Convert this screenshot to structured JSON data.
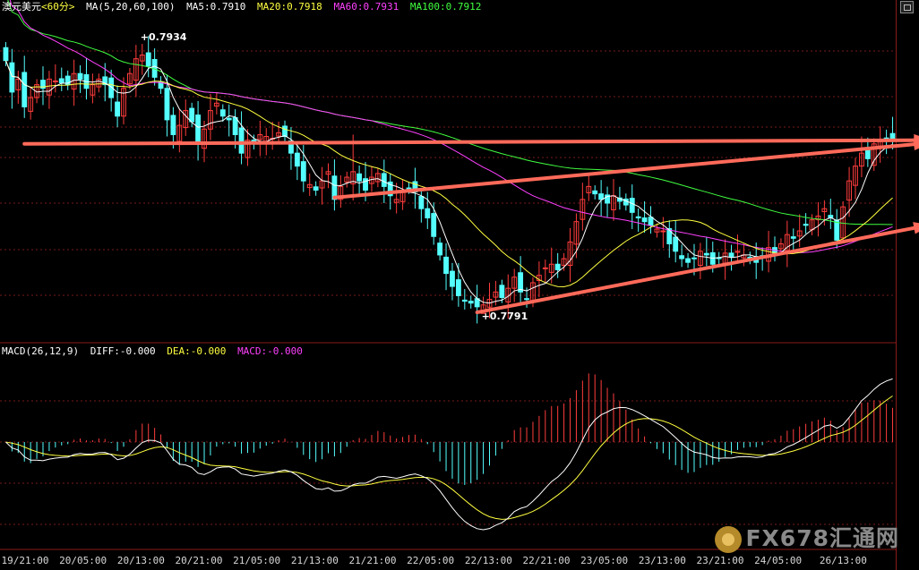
{
  "header": {
    "symbol": "澳元美元",
    "period": "<60分>",
    "ma_label": "MA(5,20,60,100)",
    "ma5": "MA5:0.7910",
    "ma20": "MA20:0.7918",
    "ma60": "MA60:0.7931",
    "ma100": "MA100:0.7912"
  },
  "macd_header": {
    "label": "MACD(26,12,9)",
    "diff": "DIFF:-0.000",
    "dea": "DEA:-0.000",
    "macd": "MACD:-0.000"
  },
  "colors": {
    "background": "#000000",
    "up_candle": "#ff3c3c",
    "down_candle": "#54ffff",
    "ma5": "#ffffff",
    "ma20": "#ffff40",
    "ma60": "#ff40ff",
    "ma100": "#40ff40",
    "trend_arrow": "#ff6a5a",
    "grid": "#7a1a1a",
    "axis_text": "#d8d8d8"
  },
  "watermark": "FX678汇通网",
  "chart_data": [
    {
      "type": "candlestick",
      "title": "澳元美元 <60分>",
      "ylim": [
        0.7775,
        0.795
      ],
      "annotations": [
        {
          "text": "0.7934",
          "x_index": 22,
          "y": 0.7934
        },
        {
          "text": "0.7791",
          "x_index": 77,
          "y": 0.7791
        }
      ],
      "x_tick_labels": [
        "19/21:00",
        "20/05:00",
        "20/13:00",
        "20/21:00",
        "21/05:00",
        "21/13:00",
        "21/21:00",
        "22/05:00",
        "22/13:00",
        "22/21:00",
        "23/05:00",
        "23/13:00",
        "23/21:00",
        "24/05:00",
        "26/13:00"
      ],
      "trend_lines": [
        {
          "name": "horizontal resistance",
          "from": [
            3,
            0.788
          ],
          "to": [
            146,
            0.7882
          ]
        },
        {
          "name": "upper channel",
          "from": [
            53,
            0.7851
          ],
          "to": [
            146,
            0.788
          ]
        },
        {
          "name": "lower channel",
          "from": [
            76,
            0.7789
          ],
          "to": [
            146,
            0.7835
          ]
        }
      ],
      "close": [
        0.7925,
        0.7908,
        0.7915,
        0.79,
        0.7905,
        0.7912,
        0.791,
        0.7915,
        0.7914,
        0.7913,
        0.7912,
        0.7918,
        0.7915,
        0.791,
        0.7912,
        0.7915,
        0.7912,
        0.7905,
        0.7895,
        0.791,
        0.7918,
        0.7926,
        0.7928,
        0.7922,
        0.7916,
        0.791,
        0.7893,
        0.7885,
        0.789,
        0.7898,
        0.7892,
        0.788,
        0.7888,
        0.7898,
        0.7902,
        0.7895,
        0.7893,
        0.7885,
        0.7875,
        0.7882,
        0.788,
        0.7885,
        0.7884,
        0.7883,
        0.7886,
        0.7884,
        0.7875,
        0.7868,
        0.786,
        0.7858,
        0.7855,
        0.786,
        0.7865,
        0.785,
        0.7857,
        0.7862,
        0.7865,
        0.786,
        0.7855,
        0.7862,
        0.7864,
        0.7857,
        0.7852,
        0.785,
        0.7855,
        0.7856,
        0.7854,
        0.7845,
        0.784,
        0.783,
        0.782,
        0.781,
        0.7803,
        0.7798,
        0.7795,
        0.7794,
        0.7792,
        0.7793,
        0.7796,
        0.78,
        0.7797,
        0.7802,
        0.7808,
        0.78,
        0.7796,
        0.7805,
        0.7809,
        0.7813,
        0.7815,
        0.7812,
        0.7818,
        0.7827,
        0.7838,
        0.785,
        0.7857,
        0.7853,
        0.785,
        0.7848,
        0.7852,
        0.7849,
        0.7847,
        0.7843,
        0.784,
        0.7838,
        0.7836,
        0.7834,
        0.7833,
        0.7826,
        0.7822,
        0.7818,
        0.7816,
        0.7818,
        0.7822,
        0.782,
        0.7815,
        0.7818,
        0.7821,
        0.7819,
        0.7822,
        0.782,
        0.7818,
        0.7816,
        0.7819,
        0.7824,
        0.7821,
        0.7826,
        0.7831,
        0.7829,
        0.7833,
        0.7836,
        0.7839,
        0.7841,
        0.7845,
        0.784,
        0.7828,
        0.7846,
        0.786,
        0.7868,
        0.7875,
        0.7872,
        0.788,
        0.7882,
        0.7882,
        0.7883
      ]
    },
    {
      "type": "macd",
      "title": "MACD(26,12,9)",
      "series": [
        {
          "name": "DIFF",
          "values": []
        },
        {
          "name": "DEA",
          "values": []
        },
        {
          "name": "MACD",
          "values": []
        }
      ]
    }
  ]
}
